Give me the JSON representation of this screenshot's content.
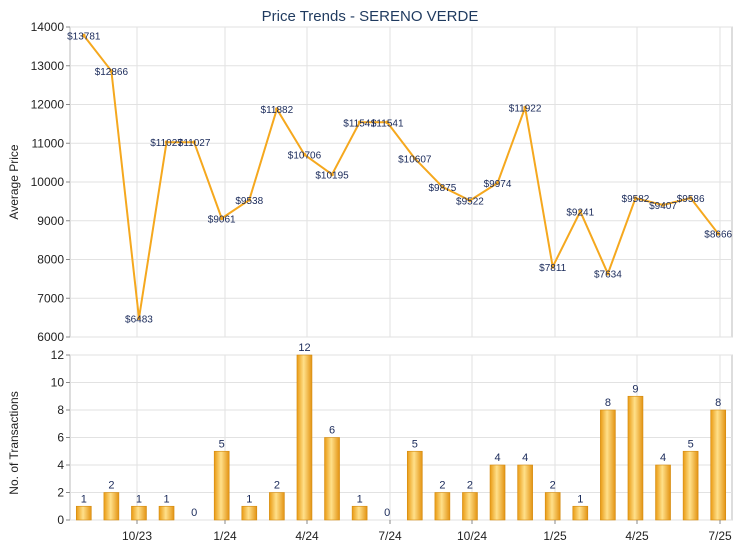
{
  "chart_data": [
    {
      "type": "line",
      "title": "Price Trends - SERENO VERDE",
      "ylabel": "Average Price",
      "ylim": [
        6000,
        14000
      ],
      "yticks": [
        6000,
        7000,
        8000,
        9000,
        10000,
        11000,
        12000,
        13000,
        14000
      ],
      "series": [
        {
          "values": [
            13781,
            12866,
            6483,
            11027,
            11027,
            9061,
            9538,
            11882,
            10706,
            10195,
            11541,
            11541,
            10607,
            9875,
            9522,
            9974,
            11922,
            7811,
            9241,
            7634,
            9582,
            9407,
            9586,
            8666
          ],
          "labels": [
            "$13781",
            "$12866",
            "$6483",
            "$11027",
            "$11027",
            "$9061",
            "$9538",
            "$11882",
            "$10706",
            "$10195",
            "$11541",
            "$11541",
            "$10607",
            "$9875",
            "$9522",
            "$9974",
            "$11922",
            "$7811",
            "$9241",
            "$7634",
            "$9582",
            "$9407",
            "$9586",
            "$8666"
          ],
          "color": "#f5a81e"
        }
      ]
    },
    {
      "type": "bar",
      "ylabel": "No. of Transactions",
      "ylim": [
        0,
        12
      ],
      "yticks": [
        0,
        2,
        4,
        6,
        8,
        10,
        12
      ],
      "values": [
        1,
        2,
        1,
        1,
        0,
        5,
        1,
        2,
        12,
        6,
        1,
        0,
        5,
        2,
        2,
        4,
        4,
        2,
        1,
        8,
        9,
        4,
        5,
        8
      ],
      "xticks": [
        "10/23",
        "1/24",
        "4/24",
        "7/24",
        "10/24",
        "1/25",
        "4/25",
        "7/25"
      ],
      "color": "#f0a820"
    }
  ]
}
